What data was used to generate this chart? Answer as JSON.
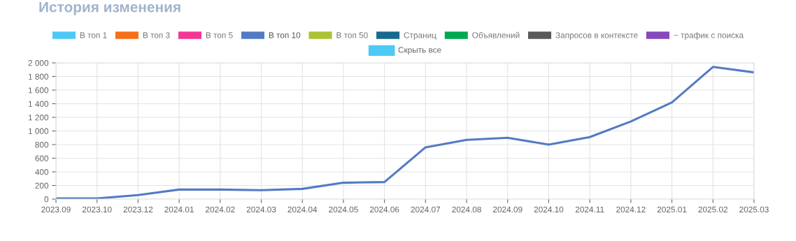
{
  "chart_data": {
    "type": "line",
    "title": "История изменения",
    "categories": [
      "2023.09",
      "2023.10",
      "2023.12",
      "2024.01",
      "2024.02",
      "2024.03",
      "2024.04",
      "2024.05",
      "2024.06",
      "2024.07",
      "2024.08",
      "2024.09",
      "2024.10",
      "2024.11",
      "2024.12",
      "2025.01",
      "2025.02",
      "2025.03"
    ],
    "series": [
      {
        "name": "В топ 1",
        "color": "#4dc9f6",
        "values": [
          null,
          null,
          null,
          null,
          null,
          null,
          null,
          null,
          null,
          null,
          null,
          null,
          null,
          null,
          null,
          null,
          null,
          null
        ]
      },
      {
        "name": "В топ 3",
        "color": "#f67019",
        "values": [
          null,
          null,
          null,
          null,
          null,
          null,
          null,
          null,
          null,
          null,
          null,
          null,
          null,
          null,
          null,
          null,
          null,
          null
        ]
      },
      {
        "name": "В топ 5",
        "color": "#f53794",
        "values": [
          null,
          null,
          null,
          null,
          null,
          null,
          null,
          null,
          null,
          null,
          null,
          null,
          null,
          null,
          null,
          null,
          null,
          null
        ]
      },
      {
        "name": "В топ 10",
        "color": "#537bc4",
        "values": [
          10,
          10,
          60,
          140,
          140,
          130,
          150,
          240,
          250,
          760,
          870,
          900,
          800,
          910,
          1140,
          1420,
          1940,
          1860
        ]
      },
      {
        "name": "В топ 50",
        "color": "#acc236",
        "values": [
          null,
          null,
          null,
          null,
          null,
          null,
          null,
          null,
          null,
          null,
          null,
          null,
          null,
          null,
          null,
          null,
          null,
          null
        ]
      },
      {
        "name": "Страниц",
        "color": "#166a8f",
        "values": [
          null,
          null,
          null,
          null,
          null,
          null,
          null,
          null,
          null,
          null,
          null,
          null,
          null,
          null,
          null,
          null,
          null,
          null
        ]
      },
      {
        "name": "Объявлений",
        "color": "#00a950",
        "values": [
          null,
          null,
          null,
          null,
          null,
          null,
          null,
          null,
          null,
          null,
          null,
          null,
          null,
          null,
          null,
          null,
          null,
          null
        ]
      },
      {
        "name": "Запросов в контексте",
        "color": "#58595b",
        "values": [
          null,
          null,
          null,
          null,
          null,
          null,
          null,
          null,
          null,
          null,
          null,
          null,
          null,
          null,
          null,
          null,
          null,
          null
        ]
      },
      {
        "name": "~ трафик с поиска",
        "color": "#8549ba",
        "values": [
          null,
          null,
          null,
          null,
          null,
          null,
          null,
          null,
          null,
          null,
          null,
          null,
          null,
          null,
          null,
          null,
          null,
          null
        ]
      }
    ],
    "annotations": [
      "Скрыть все"
    ],
    "ylim": [
      0,
      2000
    ],
    "yticks": [
      0,
      200,
      400,
      600,
      800,
      {
        "value": 1000,
        "label": "1 000"
      },
      {
        "value": 1200,
        "label": "1 200"
      },
      {
        "value": 1400,
        "label": "1 400"
      },
      {
        "value": 1600,
        "label": "1 600"
      },
      {
        "value": 1800,
        "label": "1 800"
      },
      {
        "value": 2000,
        "label": "2 000"
      }
    ],
    "grid": true,
    "legend": "top",
    "marker": "none",
    "line_style": "solid"
  }
}
